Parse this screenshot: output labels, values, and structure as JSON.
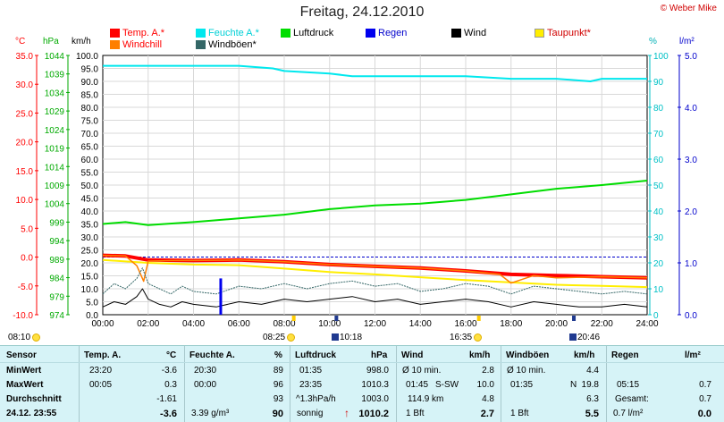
{
  "header": {
    "title": "Freitag, 24.12.2010",
    "copyright": "© Weber Mike"
  },
  "legend": [
    {
      "label": "Temp. A.*",
      "color": "#ff0000"
    },
    {
      "label": "Feuchte A.*",
      "color": "#00e8ee"
    },
    {
      "label": "Luftdruck",
      "color": "#00dd00"
    },
    {
      "label": "Regen",
      "color": "#0000ee"
    },
    {
      "label": "Wind",
      "color": "#000000"
    },
    {
      "label": "Taupunkt*",
      "color": "#ffee00"
    },
    {
      "label": "Windchill",
      "color": "#ff7f00"
    },
    {
      "label": "Windböen*",
      "color": "#336666"
    }
  ],
  "units": {
    "temp": "°C",
    "pressure": "hPa",
    "wind": "km/h",
    "humidity": "%",
    "rain": "l/m²"
  },
  "chart_data": {
    "type": "line",
    "x_ticks": [
      "00:00",
      "02:00",
      "04:00",
      "06:00",
      "08:00",
      "10:00",
      "12:00",
      "14:00",
      "16:00",
      "18:00",
      "20:00",
      "22:00",
      "24:00"
    ],
    "x_range": [
      0,
      24
    ],
    "axes": {
      "temp": {
        "ticks": [
          "35.0",
          "30.0",
          "25.0",
          "20.0",
          "15.0",
          "10.0",
          "5.0",
          "0.0",
          "-5.0",
          "-10.0"
        ],
        "range": [
          -10,
          35
        ]
      },
      "pressure": {
        "ticks": [
          "1044",
          "1039",
          "1034",
          "1029",
          "1024",
          "1019",
          "1014",
          "1009",
          "1004",
          "999",
          "994",
          "989",
          "984",
          "979",
          "974"
        ],
        "range": [
          974,
          1044
        ]
      },
      "wind": {
        "ticks": [
          "100.0",
          "95.0",
          "90.0",
          "85.0",
          "80.0",
          "75.0",
          "70.0",
          "65.0",
          "60.0",
          "55.0",
          "50.0",
          "45.0",
          "40.0",
          "35.0",
          "30.0",
          "25.0",
          "20.0",
          "15.0",
          "10.0",
          "5.0",
          "0.0"
        ],
        "range": [
          0,
          100
        ]
      },
      "humidity": {
        "ticks": [
          "100",
          "90",
          "80",
          "70",
          "60",
          "50",
          "40",
          "30",
          "20",
          "10",
          "0"
        ],
        "range": [
          0,
          100
        ]
      },
      "rain": {
        "ticks": [
          "5.0",
          "4.0",
          "3.0",
          "2.0",
          "1.0",
          "0.0"
        ],
        "range": [
          0,
          5
        ]
      }
    },
    "series": [
      {
        "name": "Feuchte A.*",
        "axis": "humidity",
        "color": "#00e8ee",
        "x": [
          0,
          2,
          4,
          6,
          7.5,
          8,
          10,
          11,
          12,
          14,
          16,
          18,
          20,
          21.5,
          22,
          24
        ],
        "y": [
          96,
          96,
          96,
          96,
          95,
          94,
          93,
          92,
          92,
          92,
          92,
          91,
          91,
          90,
          91,
          91
        ]
      },
      {
        "name": "Luftdruck",
        "axis": "pressure",
        "color": "#00dd00",
        "x": [
          0,
          1,
          2,
          4,
          6,
          8,
          10,
          12,
          14,
          16,
          18,
          20,
          22,
          24
        ],
        "y": [
          998.5,
          999,
          998.2,
          999,
          1000,
          1001,
          1002.5,
          1003.5,
          1004,
          1005,
          1006.5,
          1008,
          1009,
          1010.2
        ]
      },
      {
        "name": "Temp. A.*",
        "axis": "temp",
        "color": "#ff0000",
        "x": [
          0,
          1,
          2,
          4,
          6,
          8,
          10,
          12,
          14,
          16,
          18,
          20,
          22,
          24
        ],
        "y": [
          0.3,
          0.2,
          -0.5,
          -0.6,
          -0.5,
          -0.8,
          -1.3,
          -1.6,
          -1.9,
          -2.4,
          -3.0,
          -3.2,
          -3.4,
          -3.6
        ]
      },
      {
        "name": "Taupunkt*",
        "axis": "temp",
        "color": "#ffee00",
        "x": [
          0,
          2,
          4,
          6,
          8,
          10,
          12,
          14,
          16,
          18,
          20,
          22,
          24
        ],
        "y": [
          -0.5,
          -1.0,
          -1.3,
          -1.4,
          -2.0,
          -2.6,
          -3.0,
          -3.5,
          -4.0,
          -4.4,
          -4.8,
          -5.0,
          -5.2
        ]
      },
      {
        "name": "Windchill",
        "axis": "temp",
        "color": "#ff7f00",
        "x": [
          0,
          1,
          1.5,
          1.8,
          2,
          3,
          4,
          6,
          8,
          10,
          12,
          14,
          16,
          17.5,
          18,
          19,
          20,
          22,
          24
        ],
        "y": [
          0.3,
          0.2,
          -1.5,
          -4.2,
          -0.7,
          -0.6,
          -0.6,
          -0.5,
          -0.8,
          -1.3,
          -1.6,
          -1.9,
          -2.4,
          -3.0,
          -4.5,
          -3.2,
          -3.6,
          -3.4,
          -3.6
        ]
      },
      {
        "name": "Windböen*",
        "axis": "wind",
        "color": "#336666",
        "x": [
          0,
          0.5,
          1,
          1.5,
          1.75,
          2,
          2.5,
          3,
          3.5,
          4,
          5,
          6,
          7,
          8,
          9,
          10,
          11,
          12,
          13,
          14,
          15,
          16,
          17,
          18,
          19,
          20,
          21,
          22,
          23,
          24
        ],
        "y": [
          8,
          12,
          10,
          14,
          18,
          12,
          10,
          8,
          11,
          9,
          8,
          11,
          10,
          12,
          10,
          12,
          13,
          11,
          12,
          9,
          10,
          12,
          11,
          8,
          11,
          10,
          9,
          8,
          9,
          8
        ]
      },
      {
        "name": "Wind",
        "axis": "wind",
        "color": "#000000",
        "x": [
          0,
          0.5,
          1,
          1.5,
          1.75,
          2,
          2.5,
          3,
          3.5,
          4,
          5,
          6,
          7,
          8,
          9,
          10,
          11,
          12,
          13,
          14,
          15,
          16,
          17,
          18,
          19,
          20,
          21,
          22,
          23,
          24
        ],
        "y": [
          3,
          5,
          4,
          7,
          10,
          6,
          4,
          3,
          5,
          4,
          3,
          5,
          4,
          6,
          5,
          6,
          7,
          5,
          6,
          4,
          5,
          6,
          5,
          3,
          5,
          4,
          3,
          3,
          4,
          3
        ]
      }
    ],
    "rain": {
      "x": [
        5.2
      ],
      "y": [
        0.7
      ]
    },
    "markers": {
      "sunrise": "08:25",
      "moonset": "10:18",
      "sunset": "16:35",
      "moonrise": "20:46",
      "start_time": "08:10"
    }
  },
  "panel": {
    "headers": {
      "sensor": "Sensor",
      "temp": "Temp. A.",
      "temp_unit": "°C",
      "hum": "Feuchte A.",
      "hum_unit": "%",
      "press": "Luftdruck",
      "press_unit": "hPa",
      "wind": "Wind",
      "wind_unit": "km/h",
      "gust": "Windböen",
      "gust_unit": "km/h",
      "rain": "Regen",
      "rain_unit": "l/m²"
    },
    "rows": [
      {
        "label": "MinWert",
        "t_time": "23:20",
        "t_val": "-3.6",
        "h_time": "20:30",
        "h_val": "89",
        "p_time": "01:35",
        "p_val": "998.0",
        "w_time": "Ø 10 min.",
        "w_val": "2.8",
        "g_time": "Ø 10 min.",
        "g_val": "4.4",
        "r_time": "",
        "r_val": ""
      },
      {
        "label": "MaxWert",
        "t_time": "00:05",
        "t_val": "0.3",
        "h_time": "00:00",
        "h_val": "96",
        "p_time": "23:35",
        "p_val": "1010.3",
        "w_time": "01:45",
        "w_dir": "S-SW",
        "w_val": "10.0",
        "g_time": "01:35",
        "g_dir": "N",
        "g_val": "19.8",
        "r_time": "05:15",
        "r_val": "0.7"
      },
      {
        "label": "Durchschnitt",
        "t_time": "",
        "t_val": "-1.61",
        "h_time": "",
        "h_val": "93",
        "p_time": "^1.3hPa/h",
        "p_val": "1003.0",
        "w_time": "114.9 km",
        "w_val": "4.8",
        "g_time": "",
        "g_val": "6.3",
        "r_time": "Gesamt:",
        "r_val": "0.7"
      },
      {
        "label": "24.12.  23:55",
        "t_time": "",
        "t_val": "-3.6",
        "h_time": "3.39 g/m³",
        "h_val": "90",
        "p_time": "sonnig",
        "p_val": "1010.2",
        "w_time": "1 Bft",
        "w_val": "2.7",
        "g_time": "1 Bft",
        "g_val": "5.5",
        "r_time": "0.7 l/m²",
        "r_val": "0.0"
      }
    ]
  }
}
